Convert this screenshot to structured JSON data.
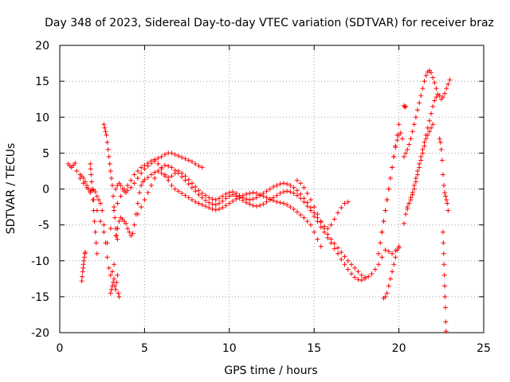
{
  "chart_data": {
    "type": "scatter",
    "title": "Day 348 of 2023, Sidereal Day-to-day VTEC variation (SDTVAR) for receiver braz",
    "xlabel": "GPS time / hours",
    "ylabel": "SDTVAR / TECUs",
    "xlim": [
      0,
      25
    ],
    "ylim": [
      -20,
      20
    ],
    "xticks": [
      "0",
      "5",
      "10",
      "15",
      "20",
      "25"
    ],
    "yticks": [
      "20",
      "15",
      "10",
      "5",
      "0",
      "-5",
      "-10",
      "-15",
      "-20"
    ],
    "xtick_values": [
      0,
      5,
      10,
      15,
      20,
      25
    ],
    "ytick_values": [
      20,
      15,
      10,
      5,
      0,
      -5,
      -10,
      -15,
      -20
    ],
    "grid": true,
    "marker": "+",
    "series": [
      {
        "name": "s1",
        "color": "#ff0000",
        "x": [
          0.5,
          0.6,
          0.7,
          0.8,
          0.9,
          1.0,
          1.2,
          1.4,
          1.6,
          1.8,
          2.0,
          2.2,
          2.4,
          2.6,
          2.8,
          3.0,
          3.2,
          3.4,
          3.6,
          3.8,
          4.0,
          4.2,
          4.4,
          4.6,
          4.8,
          5.0,
          5.2,
          5.4,
          5.6,
          5.8,
          6.0,
          6.2,
          6.4,
          6.6,
          6.8,
          7.0,
          7.2,
          7.4,
          7.6,
          7.8,
          8.0,
          8.2,
          8.4
        ],
        "y": [
          3.5,
          3.2,
          3.0,
          3.3,
          3.6,
          2.5,
          1.5,
          0.8,
          0.2,
          -0.5,
          -1.5,
          -3.0,
          -4.5,
          -6.0,
          -7.5,
          -5.5,
          -3.0,
          -2.0,
          -1.0,
          0.0,
          0.5,
          1.2,
          2.0,
          2.5,
          3.0,
          3.3,
          3.6,
          3.9,
          4.1,
          4.3,
          4.5,
          4.8,
          5.0,
          5.0,
          4.8,
          4.6,
          4.4,
          4.2,
          4.0,
          3.8,
          3.5,
          3.2,
          3.0
        ]
      },
      {
        "name": "s2",
        "color": "#ff0000",
        "x": [
          1.2,
          1.3,
          1.4,
          1.5,
          1.6,
          1.7,
          1.8,
          1.9,
          2.0,
          2.1,
          2.2,
          2.3,
          2.4,
          2.5,
          2.6,
          2.7,
          2.8,
          2.9,
          3.0,
          3.1,
          3.2,
          3.3,
          3.4
        ],
        "y": [
          2.0,
          1.8,
          1.5,
          1.0,
          0.5,
          0.0,
          -0.3,
          -0.2,
          -0.1,
          -0.4,
          -1.0,
          -1.5,
          -2.0,
          -3.0,
          -5.0,
          -7.5,
          -9.5,
          -11.0,
          -12.0,
          -11.5,
          -10.5,
          -6.5,
          -5.5
        ]
      },
      {
        "name": "s3",
        "color": "#ff0000",
        "x": [
          2.6,
          2.65,
          2.7,
          2.75,
          2.8,
          2.85,
          2.9,
          2.95,
          3.0,
          3.05,
          3.1,
          3.15,
          3.2,
          3.25,
          3.3,
          3.35,
          3.4
        ],
        "y": [
          9.0,
          8.5,
          8.0,
          7.5,
          6.5,
          5.5,
          4.5,
          3.5,
          2.5,
          1.5,
          0.5,
          -1.0,
          -2.5,
          -4.0,
          -5.5,
          -6.5,
          -7.0
        ]
      },
      {
        "name": "s4",
        "color": "#ff0000",
        "x": [
          1.3,
          1.32,
          1.35,
          1.38,
          1.4,
          1.42,
          1.45,
          1.48,
          1.5
        ],
        "y": [
          -12.8,
          -12.2,
          -11.5,
          -11.0,
          -10.5,
          -10.0,
          -9.5,
          -9.0,
          -8.8
        ]
      },
      {
        "name": "s5",
        "color": "#ff0000",
        "x": [
          1.8,
          1.82,
          1.85,
          1.88,
          1.9,
          1.95,
          2.0,
          2.05,
          2.1,
          2.15,
          2.2
        ],
        "y": [
          3.5,
          2.8,
          2.0,
          1.0,
          0.0,
          -1.5,
          -3.0,
          -4.5,
          -6.0,
          -7.5,
          -9.0
        ]
      },
      {
        "name": "s6",
        "color": "#ff0000",
        "x": [
          3.0,
          3.05,
          3.1,
          3.15,
          3.2,
          3.25,
          3.3,
          3.35,
          3.4,
          3.45,
          3.5
        ],
        "y": [
          -14.5,
          -14.0,
          -13.5,
          -13.0,
          -12.5,
          -13.5,
          -14.0,
          -13.0,
          -12.0,
          -14.5,
          -15.0
        ]
      },
      {
        "name": "s7",
        "color": "#ff0000",
        "x": [
          3.4,
          3.5,
          3.6,
          3.7,
          3.8,
          3.9,
          4.0,
          4.1,
          4.2,
          4.3,
          4.4,
          4.5,
          4.6,
          4.7,
          4.8,
          4.9,
          5.0,
          5.2,
          5.4,
          5.6,
          5.8,
          6.0,
          6.2,
          6.4,
          6.6,
          6.8,
          7.0,
          7.2,
          7.4,
          7.6,
          7.8,
          8.0,
          8.2,
          8.4,
          8.6,
          8.8,
          9.0,
          9.2,
          9.4,
          9.6,
          9.8,
          10.0,
          10.2,
          10.4,
          10.6,
          10.8,
          11.0,
          11.2,
          11.4,
          11.6,
          11.8,
          12.0,
          12.2,
          12.4,
          12.6,
          12.8,
          13.0,
          13.2,
          13.4,
          13.6,
          13.8,
          14.0,
          14.2,
          14.4,
          14.6,
          14.8,
          15.0,
          15.2,
          15.4
        ],
        "y": [
          -5.5,
          -4.5,
          -4.0,
          -4.2,
          -4.5,
          -4.8,
          -5.5,
          -6.0,
          -6.5,
          -6.2,
          -5.0,
          -3.5,
          -2.0,
          -0.5,
          0.5,
          1.0,
          1.3,
          1.6,
          2.0,
          2.3,
          2.5,
          2.2,
          1.8,
          1.2,
          0.5,
          0.0,
          -0.3,
          -0.6,
          -0.9,
          -1.2,
          -1.5,
          -1.8,
          -2.0,
          -2.2,
          -2.4,
          -2.6,
          -2.8,
          -2.9,
          -2.8,
          -2.6,
          -2.3,
          -2.0,
          -1.7,
          -1.4,
          -1.1,
          -0.9,
          -0.7,
          -0.6,
          -0.5,
          -0.6,
          -0.8,
          -1.0,
          -1.2,
          -1.4,
          -1.6,
          -1.8,
          -1.9,
          -2.0,
          -2.2,
          -2.5,
          -2.8,
          -3.2,
          -3.6,
          -4.0,
          -4.5,
          -5.0,
          -6.0,
          -7.0,
          -8.0
        ]
      },
      {
        "name": "s8",
        "color": "#ff0000",
        "x": [
          3.3,
          3.4,
          3.5,
          3.6,
          3.7,
          3.8,
          3.9,
          4.0,
          4.2,
          4.4,
          4.6,
          4.8,
          5.0,
          5.2,
          5.4,
          5.6,
          5.8,
          6.0,
          6.2,
          6.4,
          6.6,
          6.8,
          7.0,
          7.2,
          7.4,
          7.6,
          7.8,
          8.0,
          8.2,
          8.4,
          8.6,
          8.8,
          9.0,
          9.2,
          9.4,
          9.6,
          9.8,
          10.0,
          10.2,
          10.4,
          10.6,
          10.8,
          11.0,
          11.2,
          11.4,
          11.6,
          11.8,
          12.0,
          12.2,
          12.4,
          12.6,
          12.8,
          13.0,
          13.2,
          13.4,
          13.6,
          13.8,
          14.0,
          14.2,
          14.4,
          14.6,
          14.8,
          15.0,
          15.2,
          15.4,
          15.6,
          15.8,
          16.0,
          16.2,
          16.4,
          16.6,
          16.8,
          17.0
        ],
        "y": [
          0.0,
          0.5,
          0.8,
          0.5,
          0.0,
          -0.3,
          -0.5,
          -0.2,
          0.2,
          0.8,
          1.5,
          2.2,
          2.8,
          3.2,
          3.6,
          3.9,
          3.5,
          2.8,
          2.0,
          1.6,
          1.8,
          2.2,
          2.5,
          2.2,
          1.8,
          1.3,
          0.8,
          0.3,
          -0.2,
          -0.6,
          -0.9,
          -1.2,
          -1.4,
          -1.5,
          -1.3,
          -1.0,
          -0.7,
          -0.5,
          -0.4,
          -0.6,
          -0.9,
          -1.2,
          -1.4,
          -1.5,
          -1.4,
          -1.2,
          -0.9,
          -0.6,
          -0.3,
          0.0,
          0.3,
          0.5,
          0.7,
          0.8,
          0.7,
          0.5,
          0.2,
          -0.2,
          -0.7,
          -1.3,
          -1.9,
          -2.6,
          -3.3,
          -4.0,
          -4.6,
          -5.2,
          -5.5,
          -5.0,
          -4.2,
          -3.3,
          -2.6,
          -2.0,
          -1.8
        ]
      },
      {
        "name": "s9",
        "color": "#ff0000",
        "x": [
          4.6,
          4.8,
          5.0,
          5.2,
          5.4,
          5.6,
          5.8,
          6.0,
          6.2,
          6.4,
          6.6,
          6.8,
          7.0,
          7.2,
          7.4,
          7.6,
          7.8,
          8.0,
          8.2,
          8.4,
          8.6,
          8.8,
          9.0,
          9.2,
          9.4,
          9.6,
          9.8,
          10.0,
          10.2,
          10.4,
          10.6,
          10.8,
          11.0,
          11.2,
          11.4,
          11.6,
          11.8,
          12.0,
          12.2,
          12.4,
          12.6,
          12.8,
          13.0,
          13.2,
          13.4,
          13.6,
          13.8,
          14.0,
          14.2,
          14.4,
          14.6,
          14.8,
          15.0,
          15.2,
          15.4,
          15.6,
          15.8,
          16.0,
          16.2,
          16.4,
          16.6,
          16.8,
          17.0,
          17.2,
          17.4,
          17.6,
          17.8,
          18.0
        ],
        "y": [
          -3.5,
          -2.5,
          -1.5,
          -0.5,
          0.5,
          1.5,
          2.5,
          3.0,
          3.3,
          3.2,
          3.0,
          2.6,
          2.2,
          1.7,
          1.2,
          0.7,
          0.2,
          -0.3,
          -0.8,
          -1.2,
          -1.6,
          -1.9,
          -2.1,
          -2.2,
          -2.0,
          -1.7,
          -1.3,
          -1.0,
          -0.8,
          -1.0,
          -1.3,
          -1.6,
          -1.9,
          -2.1,
          -2.3,
          -2.4,
          -2.3,
          -2.1,
          -1.8,
          -1.5,
          -1.2,
          -0.9,
          -0.6,
          -0.4,
          -0.3,
          -0.4,
          -0.6,
          -0.9,
          -1.3,
          -1.8,
          -2.4,
          -3.0,
          -3.8,
          -4.5,
          -5.3,
          -6.0,
          -6.8,
          -7.5,
          -8.3,
          -9.0,
          -9.8,
          -10.5,
          -11.2,
          -11.8,
          -12.3,
          -12.6,
          -12.7,
          -12.5
        ]
      },
      {
        "name": "s10",
        "color": "#ff0000",
        "x": [
          14.0,
          14.2,
          14.4,
          14.6,
          14.8,
          15.0,
          15.2,
          15.4,
          15.6,
          15.8,
          16.0,
          16.2,
          16.4,
          16.6,
          16.8,
          17.0,
          17.2,
          17.4,
          17.6,
          17.8,
          18.0,
          18.2,
          18.4,
          18.6,
          18.8,
          19.0,
          19.2,
          19.4,
          19.6,
          19.8,
          20.0
        ],
        "y": [
          1.2,
          0.8,
          0.2,
          -0.6,
          -1.5,
          -2.5,
          -3.5,
          -4.5,
          -5.5,
          -6.3,
          -7.0,
          -7.6,
          -8.2,
          -8.8,
          -9.4,
          -10.0,
          -10.5,
          -11.0,
          -11.5,
          -12.0,
          -12.3,
          -12.2,
          -11.8,
          -11.2,
          -10.5,
          -9.5,
          -8.5,
          -8.7,
          -9.0,
          -8.6,
          -8.2
        ]
      },
      {
        "name": "s11",
        "color": "#ff0000",
        "x": [
          18.8,
          18.9,
          19.0,
          19.1,
          19.2,
          19.3,
          19.4,
          19.5,
          19.6,
          19.7,
          19.8,
          19.9,
          20.0
        ],
        "y": [
          -9.0,
          -7.5,
          -6.0,
          -4.5,
          -3.0,
          -1.5,
          0.0,
          1.5,
          3.0,
          4.5,
          6.0,
          7.5,
          9.0
        ]
      },
      {
        "name": "s12",
        "color": "#ff0000",
        "x": [
          19.0,
          19.1,
          19.2,
          19.3,
          19.4,
          19.5,
          19.6,
          19.7,
          19.8,
          19.9,
          20.0,
          20.1,
          20.2
        ],
        "y": [
          -6.0,
          -4.5,
          -3.0,
          -1.5,
          0.0,
          1.5,
          3.0,
          4.5,
          5.8,
          6.8,
          7.5,
          7.8,
          7.0
        ]
      },
      {
        "name": "s13",
        "color": "#ff0000",
        "x": [
          19.1,
          19.2,
          19.3,
          19.4,
          19.5,
          19.6,
          19.7,
          19.8,
          19.9,
          20.0
        ],
        "y": [
          -15.2,
          -15.0,
          -14.5,
          -13.5,
          -12.5,
          -11.5,
          -10.5,
          -9.5,
          -8.5,
          -8.0
        ]
      },
      {
        "name": "s14",
        "color": "#ff0000",
        "x": [
          20.3,
          20.35,
          20.4
        ],
        "y": [
          11.6,
          11.4,
          11.5
        ]
      },
      {
        "name": "s15",
        "color": "#ff0000",
        "x": [
          20.3,
          20.4,
          20.5,
          20.6,
          20.7,
          20.8,
          20.9,
          21.0,
          21.1,
          21.2,
          21.3,
          21.4,
          21.5,
          21.6,
          21.7,
          21.8,
          21.9,
          22.0,
          22.1,
          22.2
        ],
        "y": [
          4.5,
          5.0,
          5.5,
          6.2,
          7.0,
          8.0,
          9.0,
          10.0,
          11.0,
          12.0,
          13.0,
          14.0,
          15.0,
          15.8,
          16.3,
          16.5,
          16.2,
          15.5,
          14.8,
          14.0
        ]
      },
      {
        "name": "s16",
        "color": "#ff0000",
        "x": [
          20.3,
          20.4,
          20.5,
          20.6,
          20.7,
          20.8,
          20.9,
          21.0,
          21.1,
          21.2,
          21.3,
          21.4,
          21.5,
          21.6,
          21.7,
          21.8,
          21.9,
          22.0,
          22.1,
          22.2,
          22.3,
          22.4,
          22.5,
          22.6,
          22.7,
          22.8,
          22.9,
          23.0
        ],
        "y": [
          -4.8,
          -3.5,
          -2.8,
          -2.0,
          -1.2,
          -0.5,
          0.5,
          1.5,
          2.5,
          3.5,
          4.5,
          5.5,
          6.5,
          7.5,
          8.5,
          9.5,
          10.5,
          11.5,
          12.3,
          12.8,
          13.2,
          13.0,
          12.5,
          12.8,
          13.3,
          14.0,
          14.6,
          15.2
        ]
      },
      {
        "name": "s17",
        "color": "#ff0000",
        "x": [
          20.5,
          20.6,
          20.7,
          20.8,
          20.9,
          21.0,
          21.1,
          21.2,
          21.3,
          21.4,
          21.5,
          21.6,
          21.7,
          21.8,
          21.9,
          22.0
        ],
        "y": [
          -2.5,
          -2.0,
          -1.5,
          -0.8,
          0.0,
          1.0,
          2.0,
          3.0,
          4.0,
          5.0,
          6.0,
          7.0,
          7.5,
          8.0,
          8.5,
          9.0
        ]
      },
      {
        "name": "s18",
        "color": "#ff0000",
        "x": [
          22.4,
          22.45,
          22.5,
          22.55,
          22.6,
          22.65,
          22.7,
          22.75,
          22.8,
          22.85,
          22.9
        ],
        "y": [
          7.0,
          6.5,
          5.5,
          4.0,
          2.0,
          0.5,
          -0.5,
          -1.0,
          -1.5,
          -2.0,
          -3.0
        ]
      },
      {
        "name": "s19",
        "color": "#ff0000",
        "x": [
          22.6,
          22.62,
          22.64,
          22.66,
          22.68,
          22.7,
          22.72,
          22.74,
          22.76,
          22.78
        ],
        "y": [
          -6.0,
          -7.5,
          -9.0,
          -10.5,
          -12.0,
          -13.5,
          -15.0,
          -16.5,
          -18.5,
          -19.8
        ]
      }
    ]
  }
}
